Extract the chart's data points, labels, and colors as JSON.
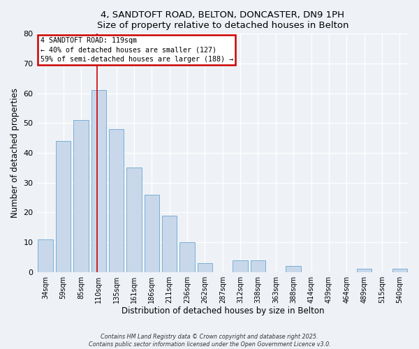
{
  "title": "4, SANDTOFT ROAD, BELTON, DONCASTER, DN9 1PH",
  "subtitle": "Size of property relative to detached houses in Belton",
  "xlabel": "Distribution of detached houses by size in Belton",
  "ylabel": "Number of detached properties",
  "bar_color": "#c8d8ea",
  "bar_edge_color": "#7aafd4",
  "background_color": "#eef2f7",
  "plot_bg_color": "#eef2f7",
  "categories": [
    "34sqm",
    "59sqm",
    "85sqm",
    "110sqm",
    "135sqm",
    "161sqm",
    "186sqm",
    "211sqm",
    "236sqm",
    "262sqm",
    "287sqm",
    "312sqm",
    "338sqm",
    "363sqm",
    "388sqm",
    "414sqm",
    "439sqm",
    "464sqm",
    "489sqm",
    "515sqm",
    "540sqm"
  ],
  "values": [
    11,
    44,
    51,
    61,
    48,
    35,
    26,
    19,
    10,
    3,
    0,
    4,
    4,
    0,
    2,
    0,
    0,
    0,
    1,
    0,
    1
  ],
  "ylim": [
    0,
    80
  ],
  "yticks": [
    0,
    10,
    20,
    30,
    40,
    50,
    60,
    70,
    80
  ],
  "vline_index": 3,
  "marker_label": "4 SANDTOFT ROAD: 119sqm",
  "annotation_line1": "← 40% of detached houses are smaller (127)",
  "annotation_line2": "59% of semi-detached houses are larger (188) →",
  "annotation_box_color": "#ffffff",
  "annotation_box_edge": "#cc0000",
  "vline_color": "#cc0000",
  "footer1": "Contains HM Land Registry data © Crown copyright and database right 2025.",
  "footer2": "Contains public sector information licensed under the Open Government Licence v3.0."
}
